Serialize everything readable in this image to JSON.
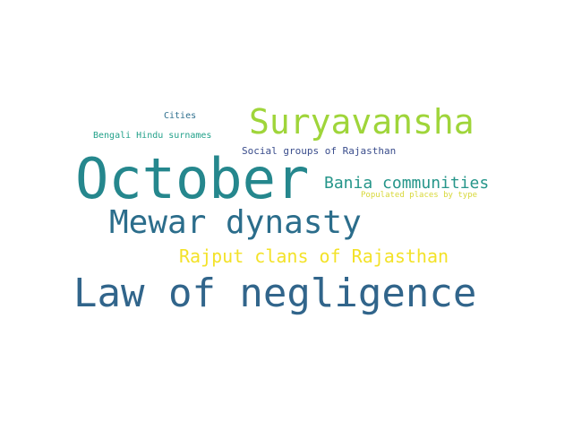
{
  "word_cloud": {
    "words": [
      {
        "id": "october",
        "text": "October",
        "color": "#25878d"
      },
      {
        "id": "law_of_negligence",
        "text": "Law of negligence",
        "color": "#31658b"
      },
      {
        "id": "suryavansha",
        "text": "Suryavansha",
        "color": "#9fd53a"
      },
      {
        "id": "mewar_dynasty",
        "text": "Mewar dynasty",
        "color": "#2b6d8b"
      },
      {
        "id": "rajput_clans",
        "text": "Rajput clans of Rajasthan",
        "color": "#f3e229"
      },
      {
        "id": "bania_communities",
        "text": "Bania communities",
        "color": "#26968a"
      },
      {
        "id": "social_groups",
        "text": "Social groups of Rajasthan",
        "color": "#3a4d8c"
      },
      {
        "id": "populated_places",
        "text": "Populated places by type",
        "color": "#d8d83a"
      },
      {
        "id": "bengali_hindu",
        "text": "Bengali Hindu surnames",
        "color": "#23a18a"
      },
      {
        "id": "cities",
        "text": "Cities",
        "color": "#2e6f8e"
      }
    ]
  }
}
